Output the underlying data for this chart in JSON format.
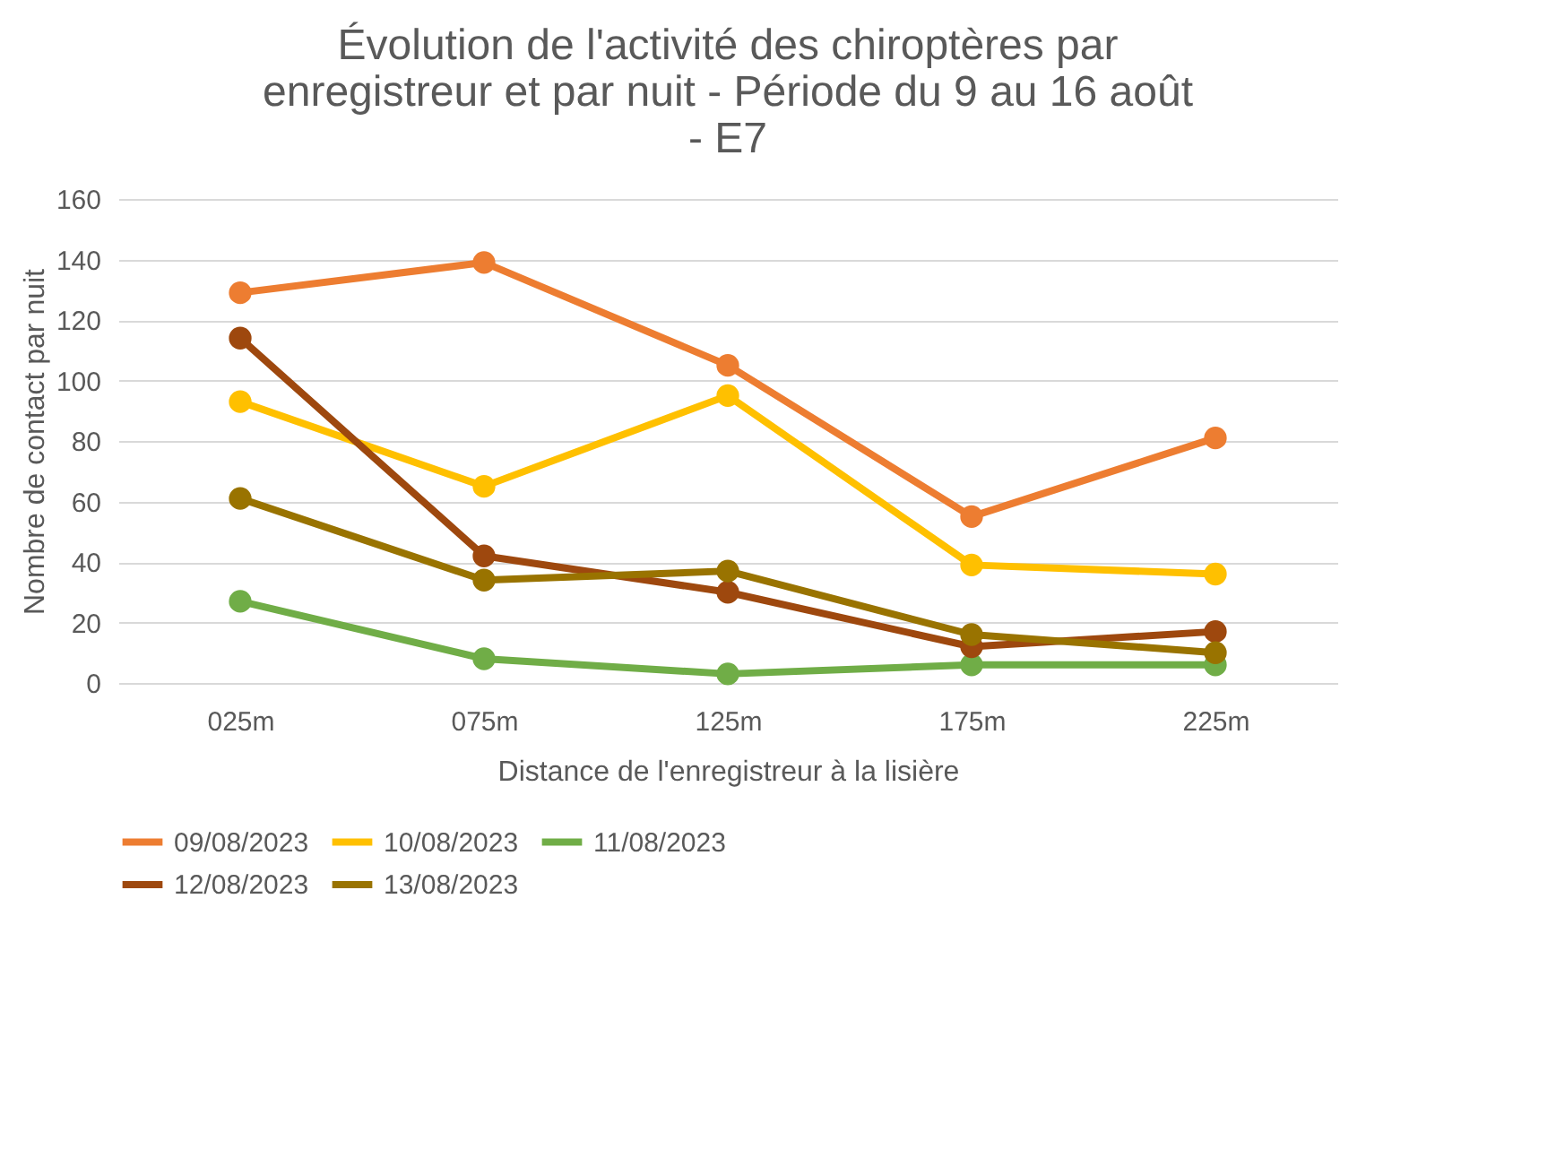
{
  "chart_data": {
    "type": "line",
    "title": "Évolution de l'activité des chiroptères par enregistreur et par nuit - Période du 9 au 16 août - E7",
    "xlabel": "Distance de l'enregistreur à la lisière",
    "ylabel": "Nombre de contact par nuit",
    "categories": [
      "025m",
      "075m",
      "125m",
      "175m",
      "225m"
    ],
    "series": [
      {
        "name": "09/08/2023",
        "color": "#ed7d31",
        "values": [
          129,
          139,
          105,
          55,
          81
        ]
      },
      {
        "name": "10/08/2023",
        "color": "#ffc000",
        "values": [
          93,
          65,
          95,
          39,
          36
        ]
      },
      {
        "name": "11/08/2023",
        "color": "#70ad47",
        "values": [
          27,
          8,
          3,
          6,
          6
        ]
      },
      {
        "name": "12/08/2023",
        "color": "#9e480e",
        "values": [
          114,
          42,
          30,
          12,
          17
        ]
      },
      {
        "name": "13/08/2023",
        "color": "#997300",
        "values": [
          61,
          34,
          37,
          16,
          10
        ]
      }
    ],
    "ylim": [
      0,
      160
    ],
    "yticks": [
      0,
      20,
      40,
      60,
      80,
      100,
      120,
      140,
      160
    ],
    "grid": "y",
    "legend": "bottom",
    "marker": "circle",
    "line_style": "solid"
  }
}
